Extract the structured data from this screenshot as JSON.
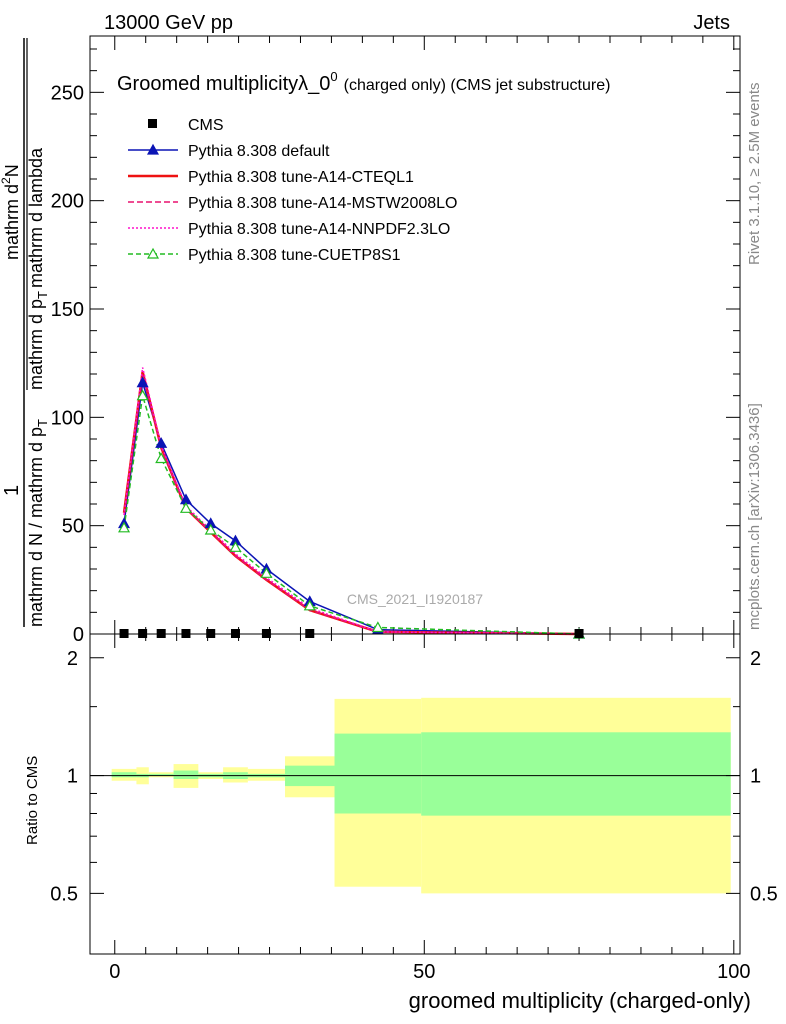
{
  "header": {
    "left": "13000 GeV pp",
    "right": "Jets"
  },
  "side_labels": {
    "rivet": "Rivet 3.1.10, ≥ 2.5M events",
    "mcplots": "mcplots.cern.ch [arXiv:1306.3436]"
  },
  "chart_data": [
    {
      "type": "line",
      "title_main": "Groomed multiplicityλ_0",
      "title_sup": "0",
      "title_extra": "(charged only) (CMS jet substructure)",
      "watermark": "CMS_2021_I1920187",
      "ylabel_numer": "1",
      "ylabel_denom": "mathrm d N / mathrm d p",
      "ylabel_denom_sub": "T",
      "ylabel_numer2": "mathrm d",
      "ylabel_numer2_sup": "2",
      "ylabel_numer2_rest": "N",
      "ylabel_denom2": "mathrm d p",
      "ylabel_denom2_sub": "T",
      "ylabel_denom2_rest": "mathrm d lambda",
      "xlim": [
        -4,
        101
      ],
      "ylim": [
        0,
        276
      ],
      "yticks": [
        0,
        50,
        100,
        150,
        200,
        250
      ],
      "legend_position": "top-left",
      "cms": {
        "name": "CMS",
        "x": [
          1.5,
          4.5,
          7.5,
          11.5,
          15.5,
          19.5,
          24.5,
          31.5,
          75
        ],
        "y": [
          0,
          0,
          0,
          0,
          0,
          0,
          0,
          0,
          0
        ],
        "color": "#000000"
      },
      "series": [
        {
          "name": "Pythia 8.308 default",
          "color": "#0b14b5",
          "dash": "",
          "marker": "triangle-filled",
          "x": [
            1.5,
            4.5,
            7.5,
            11.5,
            15.5,
            19.5,
            24.5,
            31.5,
            42.5,
            75
          ],
          "y": [
            51,
            116,
            88,
            62,
            51,
            43,
            30,
            15,
            2,
            0
          ]
        },
        {
          "name": "Pythia 8.308 tune-A14-CTEQL1",
          "color": "#ee1111",
          "dash": "",
          "marker": "none",
          "x": [
            1.5,
            4.5,
            7.5,
            11.5,
            15.5,
            19.5,
            24.5,
            31.5,
            42.5,
            75
          ],
          "y": [
            56,
            121,
            86,
            58,
            47,
            36,
            25,
            11,
            1,
            0
          ]
        },
        {
          "name": "Pythia 8.308 tune-A14-MSTW2008LO",
          "color": "#e8116e",
          "dash": "6,3",
          "marker": "none",
          "x": [
            1.5,
            4.5,
            7.5,
            11.5,
            15.5,
            19.5,
            24.5,
            31.5,
            42.5,
            75
          ],
          "y": [
            55,
            120,
            86,
            58,
            47,
            36,
            25,
            11,
            1,
            0
          ]
        },
        {
          "name": "Pythia 8.308 tune-A14-NNPDF2.3LO",
          "color": "#ff11cc",
          "dash": "2,2",
          "marker": "none",
          "x": [
            1.5,
            4.5,
            7.5,
            11.5,
            15.5,
            19.5,
            24.5,
            31.5,
            42.5,
            75
          ],
          "y": [
            55,
            123,
            87,
            59,
            48,
            37,
            26,
            12,
            1,
            0
          ]
        },
        {
          "name": "Pythia 8.308 tune-CUETP8S1",
          "color": "#22bb22",
          "dash": "5,3",
          "marker": "triangle-open",
          "x": [
            1.5,
            4.5,
            7.5,
            11.5,
            15.5,
            19.5,
            24.5,
            31.5,
            42.5,
            75
          ],
          "y": [
            49,
            110,
            81,
            58,
            48,
            40,
            28,
            13,
            3,
            0
          ]
        }
      ]
    },
    {
      "type": "area",
      "ylabel": "Ratio to CMS",
      "xlabel": "groomed multiplicity (charged-only)",
      "xlim": [
        -4,
        101
      ],
      "ylim": [
        0.35,
        2.3
      ],
      "xticks": [
        0,
        50,
        100
      ],
      "yticks": [
        0.5,
        1,
        2
      ],
      "reference": 1,
      "bands": [
        {
          "x0": -0.5,
          "x1": 3.5,
          "y0": 0.97,
          "y1": 1.04
        },
        {
          "x0": 3.5,
          "x1": 5.5,
          "y0": 0.95,
          "y1": 1.05
        },
        {
          "x0": 5.5,
          "x1": 9.5,
          "y0": 0.99,
          "y1": 1.02
        },
        {
          "x0": 9.5,
          "x1": 13.5,
          "y0": 0.93,
          "y1": 1.07
        },
        {
          "x0": 13.5,
          "x1": 17.5,
          "y0": 0.98,
          "y1": 1.02
        },
        {
          "x0": 17.5,
          "x1": 21.5,
          "y0": 0.96,
          "y1": 1.05
        },
        {
          "x0": 21.5,
          "x1": 27.5,
          "y0": 0.97,
          "y1": 1.04
        },
        {
          "x0": 27.5,
          "x1": 35.5,
          "y0": 0.88,
          "y1": 1.12
        },
        {
          "x0": 35.5,
          "x1": 49.5,
          "y0": 0.52,
          "y1": 1.57
        },
        {
          "x0": 49.5,
          "x1": 99.5,
          "y0": 0.5,
          "y1": 1.58
        }
      ],
      "inner_bands": [
        {
          "x0": -0.5,
          "x1": 3.5,
          "y0": 0.99,
          "y1": 1.02
        },
        {
          "x0": 3.5,
          "x1": 5.5,
          "y0": 0.99,
          "y1": 1.01
        },
        {
          "x0": 5.5,
          "x1": 9.5,
          "y0": 1.0,
          "y1": 1.01
        },
        {
          "x0": 9.5,
          "x1": 13.5,
          "y0": 0.98,
          "y1": 1.03
        },
        {
          "x0": 13.5,
          "x1": 17.5,
          "y0": 0.99,
          "y1": 1.01
        },
        {
          "x0": 17.5,
          "x1": 21.5,
          "y0": 0.98,
          "y1": 1.02
        },
        {
          "x0": 21.5,
          "x1": 27.5,
          "y0": 0.99,
          "y1": 1.01
        },
        {
          "x0": 27.5,
          "x1": 35.5,
          "y0": 0.94,
          "y1": 1.06
        },
        {
          "x0": 35.5,
          "x1": 49.5,
          "y0": 0.8,
          "y1": 1.28
        },
        {
          "x0": 49.5,
          "x1": 99.5,
          "y0": 0.79,
          "y1": 1.29
        }
      ],
      "band_colors": {
        "outer": "#ffff99",
        "inner": "#99ff99"
      }
    }
  ]
}
